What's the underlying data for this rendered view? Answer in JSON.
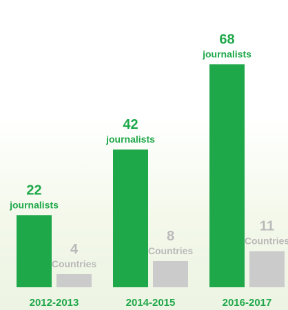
{
  "chart_data": {
    "type": "bar",
    "categories": [
      "2012-2013",
      "2014-2015",
      "2016-2017"
    ],
    "series": [
      {
        "name": "journalists",
        "unit": "journalists",
        "color": "#1fa84a",
        "values": [
          22,
          42,
          68
        ]
      },
      {
        "name": "Countries",
        "unit": "Countries",
        "color": "#cbcbcb",
        "values": [
          4,
          8,
          11
        ]
      }
    ],
    "ylim": [
      0,
      75
    ],
    "grid": false,
    "legend": "none"
  }
}
